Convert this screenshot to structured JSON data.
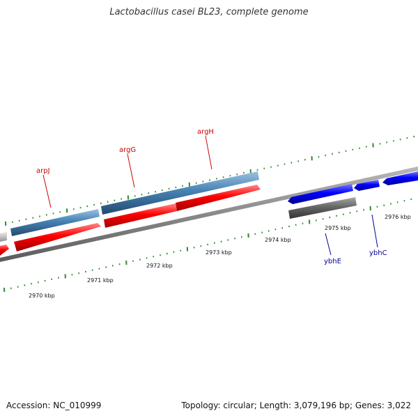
{
  "title": "Lactobacillus casei BL23, complete genome",
  "accession": "Accession: NC_010999",
  "summary": "Topology: circular; Length: 3,079,196 bp; Genes: 3,022",
  "scale_labels": [
    "2970 kbp",
    "2971 kbp",
    "2972 kbp",
    "2973 kbp",
    "2974 kbp",
    "2975 kbp",
    "2976 kbp"
  ],
  "genes": [
    {
      "name": "arpJ",
      "color": "#cc0000"
    },
    {
      "name": "argG",
      "color": "#cc0000"
    },
    {
      "name": "argH",
      "color": "#cc0000"
    },
    {
      "name": "ybhE",
      "color": "#000099"
    },
    {
      "name": "ybhC",
      "color": "#000099"
    }
  ],
  "colors": {
    "backbone": "#8a8a8a",
    "tick": "#2e8b2e",
    "feature_red": "#ff0000",
    "feature_steelblue": "#4682b4",
    "feature_blue": "#0000ff",
    "feature_grey": "#666666"
  }
}
